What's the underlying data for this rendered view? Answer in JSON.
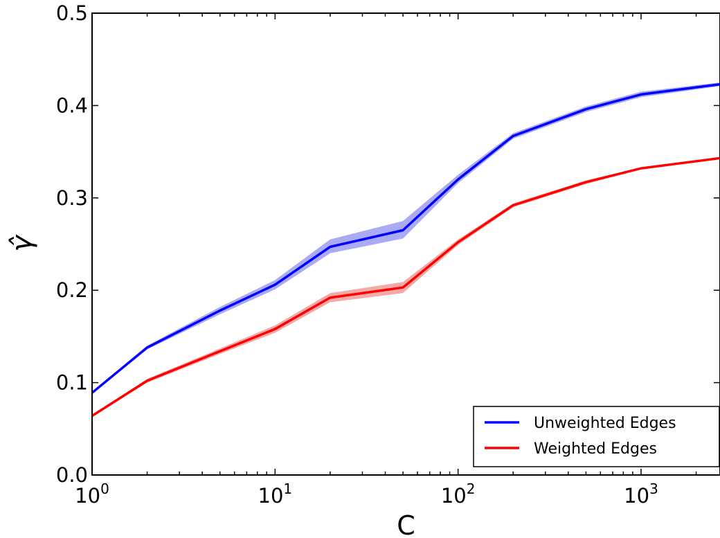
{
  "chart_data": {
    "type": "line",
    "xlabel": "C",
    "ylabel": "γ̂",
    "x_scale": "log",
    "xlim": [
      1,
      2700
    ],
    "ylim": [
      0.0,
      0.5
    ],
    "x_ticks": [
      {
        "value": 1,
        "base": "10",
        "exp": "0"
      },
      {
        "value": 10,
        "base": "10",
        "exp": "1"
      },
      {
        "value": 100,
        "base": "10",
        "exp": "2"
      },
      {
        "value": 1000,
        "base": "10",
        "exp": "3"
      }
    ],
    "y_ticks": [
      {
        "value": 0.0,
        "label": "0.0"
      },
      {
        "value": 0.1,
        "label": "0.1"
      },
      {
        "value": 0.2,
        "label": "0.2"
      },
      {
        "value": 0.3,
        "label": "0.3"
      },
      {
        "value": 0.4,
        "label": "0.4"
      },
      {
        "value": 0.5,
        "label": "0.5"
      }
    ],
    "grid": false,
    "legend_position": "lower-right",
    "x": [
      1,
      2,
      5,
      10,
      20,
      50,
      100,
      200,
      500,
      1000,
      2700
    ],
    "series": [
      {
        "name": "Unweighted Edges",
        "color": "#0000ff",
        "band_color": "#aaaaf5",
        "values": [
          0.089,
          0.138,
          0.178,
          0.206,
          0.247,
          0.265,
          0.32,
          0.367,
          0.396,
          0.412,
          0.423
        ],
        "lower": [
          0.088,
          0.136,
          0.174,
          0.201,
          0.24,
          0.256,
          0.316,
          0.364,
          0.393,
          0.409,
          0.421
        ],
        "upper": [
          0.09,
          0.14,
          0.182,
          0.211,
          0.255,
          0.275,
          0.325,
          0.37,
          0.399,
          0.415,
          0.425
        ]
      },
      {
        "name": "Weighted Edges",
        "color": "#ff0000",
        "band_color": "#f5aaaa",
        "values": [
          0.064,
          0.102,
          0.134,
          0.158,
          0.192,
          0.203,
          0.252,
          0.292,
          0.317,
          0.332,
          0.343
        ],
        "lower": [
          0.063,
          0.1,
          0.131,
          0.154,
          0.187,
          0.197,
          0.249,
          0.29,
          0.315,
          0.331,
          0.342
        ],
        "upper": [
          0.065,
          0.104,
          0.137,
          0.162,
          0.197,
          0.209,
          0.255,
          0.294,
          0.319,
          0.333,
          0.344
        ]
      }
    ]
  }
}
